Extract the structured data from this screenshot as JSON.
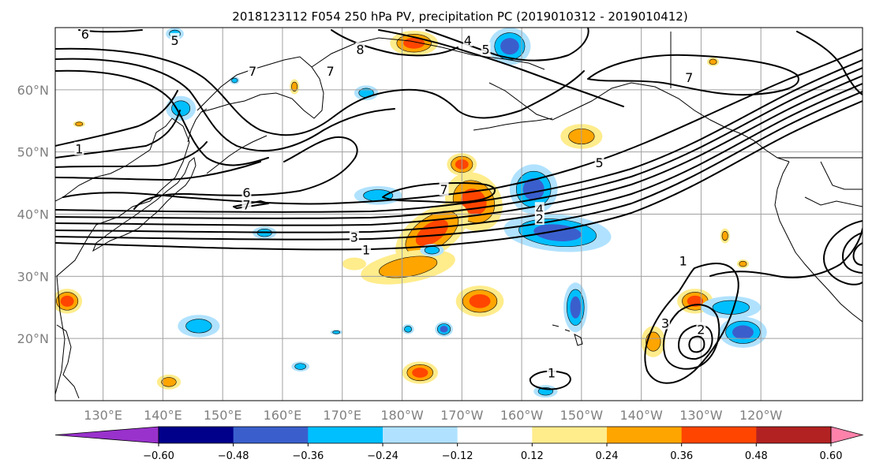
{
  "title": "2018123112 F054 250 hPa PV, precipitation PC (2019010312 - 2019010412)",
  "map": {
    "lon_range": [
      122,
      257
    ],
    "lat_range": [
      10,
      70
    ],
    "lat_ticks": [
      {
        "lat": 20,
        "label": "20°N"
      },
      {
        "lat": 30,
        "label": "30°N"
      },
      {
        "lat": 40,
        "label": "40°N"
      },
      {
        "lat": 50,
        "label": "50°N"
      },
      {
        "lat": 60,
        "label": "60°N"
      }
    ],
    "lon_ticks": [
      {
        "lon": 130,
        "label": "130°E"
      },
      {
        "lon": 140,
        "label": "140°E"
      },
      {
        "lon": 150,
        "label": "150°E"
      },
      {
        "lon": 160,
        "label": "160°E"
      },
      {
        "lon": 170,
        "label": "170°E"
      },
      {
        "lon": 180,
        "label": "180°W"
      },
      {
        "lon": 190,
        "label": "170°W"
      },
      {
        "lon": 200,
        "label": "160°W"
      },
      {
        "lon": 210,
        "label": "150°W"
      },
      {
        "lon": 220,
        "label": "140°W"
      },
      {
        "lon": 230,
        "label": "130°W"
      },
      {
        "lon": 240,
        "label": "120°W"
      }
    ],
    "grid_color": "#a0a0a0",
    "tick_label_color": "#808080"
  },
  "pv_contour_labels": [
    {
      "text": "1",
      "lon": 126,
      "lat": 50.5
    },
    {
      "text": "6",
      "lon": 154,
      "lat": 43.5
    },
    {
      "text": "7",
      "lon": 154,
      "lat": 41.5
    },
    {
      "text": "3",
      "lon": 172,
      "lat": 36.3
    },
    {
      "text": "1",
      "lon": 174,
      "lat": 34.3
    },
    {
      "text": "7",
      "lon": 187,
      "lat": 44.0
    },
    {
      "text": "4",
      "lon": 203,
      "lat": 40.8
    },
    {
      "text": "2",
      "lon": 203,
      "lat": 39.3
    },
    {
      "text": "5",
      "lon": 213,
      "lat": 48.3
    },
    {
      "text": "1",
      "lon": 227,
      "lat": 32.5
    },
    {
      "text": "3",
      "lon": 224,
      "lat": 22.5
    },
    {
      "text": "2",
      "lon": 230,
      "lat": 21.5
    },
    {
      "text": "8",
      "lon": 173,
      "lat": 66.5
    },
    {
      "text": "4",
      "lon": 191,
      "lat": 68.0
    },
    {
      "text": "5",
      "lon": 194,
      "lat": 66.5
    },
    {
      "text": "6",
      "lon": 127,
      "lat": 69.0
    },
    {
      "text": "5",
      "lon": 142,
      "lat": 68.0
    },
    {
      "text": "7",
      "lon": 155,
      "lat": 63.0
    },
    {
      "text": "7",
      "lon": 168,
      "lat": 63.0
    },
    {
      "text": "7",
      "lon": 228,
      "lat": 62.0
    },
    {
      "text": "1",
      "lon": 205,
      "lat": 14.5
    }
  ],
  "precip_pc": [
    {
      "lon": 192,
      "lat": 42,
      "rx": 4.5,
      "ry": 5,
      "level": 0.42,
      "rot": 40
    },
    {
      "lon": 185,
      "lat": 37,
      "rx": 7,
      "ry": 3.5,
      "level": 0.36,
      "rot": 35
    },
    {
      "lon": 181,
      "lat": 31.5,
      "rx": 8,
      "ry": 2.5,
      "level": 0.3,
      "rot": 10
    },
    {
      "lon": 190,
      "lat": 48,
      "rx": 2.5,
      "ry": 1.8,
      "level": 0.36,
      "rot": 0
    },
    {
      "lon": 176,
      "lat": 43,
      "rx": 4,
      "ry": 1.5,
      "level": -0.3,
      "rot": 0
    },
    {
      "lon": 202,
      "lat": 44,
      "rx": 4,
      "ry": 4,
      "level": -0.45,
      "rot": 0
    },
    {
      "lon": 206,
      "lat": 37,
      "rx": 9,
      "ry": 3,
      "level": -0.42,
      "rot": -5
    },
    {
      "lon": 210,
      "lat": 52.5,
      "rx": 3.5,
      "ry": 2,
      "level": 0.24,
      "rot": 0
    },
    {
      "lon": 193,
      "lat": 26,
      "rx": 4,
      "ry": 2.5,
      "level": 0.4,
      "rot": 0
    },
    {
      "lon": 209,
      "lat": 25,
      "rx": 2,
      "ry": 4,
      "level": -0.4,
      "rot": 0
    },
    {
      "lon": 222,
      "lat": 19.5,
      "rx": 2,
      "ry": 2.5,
      "level": 0.3,
      "rot": 0
    },
    {
      "lon": 229,
      "lat": 26,
      "rx": 3,
      "ry": 2,
      "level": 0.4,
      "rot": 0
    },
    {
      "lon": 235,
      "lat": 25,
      "rx": 5,
      "ry": 1.8,
      "level": -0.3,
      "rot": 0
    },
    {
      "lon": 237,
      "lat": 21,
      "rx": 4,
      "ry": 2.5,
      "level": -0.4,
      "rot": 0
    },
    {
      "lon": 124,
      "lat": 26,
      "rx": 2.5,
      "ry": 2,
      "level": 0.36,
      "rot": 0
    },
    {
      "lon": 146,
      "lat": 22,
      "rx": 3.5,
      "ry": 1.8,
      "level": -0.28,
      "rot": 0
    },
    {
      "lon": 183,
      "lat": 14.5,
      "rx": 3,
      "ry": 1.8,
      "level": 0.42,
      "rot": 0
    },
    {
      "lon": 182,
      "lat": 67.5,
      "rx": 4,
      "ry": 2,
      "level": 0.36,
      "rot": 0
    },
    {
      "lon": 198,
      "lat": 67,
      "rx": 3.5,
      "ry": 3,
      "level": -0.38,
      "rot": 0
    },
    {
      "lon": 143,
      "lat": 57,
      "rx": 2.5,
      "ry": 2,
      "level": -0.3,
      "rot": 0
    },
    {
      "lon": 142,
      "lat": 69,
      "rx": 1.5,
      "ry": 1,
      "level": -0.28,
      "rot": 0
    },
    {
      "lon": 174,
      "lat": 59.5,
      "rx": 2,
      "ry": 1.2,
      "level": -0.28,
      "rot": 0
    },
    {
      "lon": 172,
      "lat": 32,
      "rx": 2,
      "ry": 1,
      "level": 0.2,
      "rot": 0
    },
    {
      "lon": 187,
      "lat": 21.5,
      "rx": 1.5,
      "ry": 1.2,
      "level": -0.36,
      "rot": 0
    },
    {
      "lon": 181,
      "lat": 21.5,
      "rx": 1,
      "ry": 0.8,
      "level": -0.28,
      "rot": 0
    },
    {
      "lon": 185,
      "lat": 34.2,
      "rx": 2,
      "ry": 1,
      "level": -0.28,
      "rot": 0
    },
    {
      "lon": 157,
      "lat": 37,
      "rx": 2,
      "ry": 1,
      "level": -0.28,
      "rot": 0
    },
    {
      "lon": 163,
      "lat": 15.5,
      "rx": 1.5,
      "ry": 0.8,
      "level": -0.28,
      "rot": 0
    },
    {
      "lon": 141,
      "lat": 13,
      "rx": 2,
      "ry": 1.2,
      "level": 0.28,
      "rot": 0
    },
    {
      "lon": 204,
      "lat": 11.5,
      "rx": 2,
      "ry": 1,
      "level": -0.28,
      "rot": 0
    },
    {
      "lon": 232,
      "lat": 64.5,
      "rx": 1,
      "ry": 0.7,
      "level": 0.28,
      "rot": 0
    },
    {
      "lon": 234,
      "lat": 36.5,
      "rx": 0.8,
      "ry": 1.2,
      "level": 0.28,
      "rot": 0
    },
    {
      "lon": 237,
      "lat": 32,
      "rx": 1,
      "ry": 0.7,
      "level": 0.28,
      "rot": 0
    },
    {
      "lon": 169,
      "lat": 21,
      "rx": 1,
      "ry": 0.4,
      "level": -0.28,
      "rot": 0
    },
    {
      "lon": 126,
      "lat": 54.5,
      "rx": 1,
      "ry": 0.5,
      "level": 0.28,
      "rot": 0
    },
    {
      "lon": 152,
      "lat": 61.5,
      "rx": 0.8,
      "ry": 0.6,
      "level": -0.28,
      "rot": 0
    },
    {
      "lon": 162,
      "lat": 60.5,
      "rx": 0.8,
      "ry": 1.2,
      "level": 0.28,
      "rot": 0
    }
  ],
  "colorbar": {
    "bounds": [
      -0.72,
      -0.6,
      -0.48,
      -0.36,
      -0.24,
      -0.12,
      0.12,
      0.24,
      0.36,
      0.48,
      0.6,
      0.72
    ],
    "colors": [
      "#9932cc",
      "#00008b",
      "#3a5fcd",
      "#00bfff",
      "#b0e2ff",
      "#ffffff",
      "#ffec8b",
      "#ffa500",
      "#ff4500",
      "#b22222",
      "#ff82ab"
    ],
    "tick_values": [
      -0.6,
      -0.48,
      -0.36,
      -0.24,
      -0.12,
      0.12,
      0.24,
      0.36,
      0.48,
      0.6
    ],
    "tick_labels": [
      "−0.60",
      "−0.48",
      "−0.36",
      "−0.24",
      "−0.12",
      "0.12",
      "0.24",
      "0.36",
      "0.48",
      "0.60"
    ],
    "extend": "both"
  }
}
